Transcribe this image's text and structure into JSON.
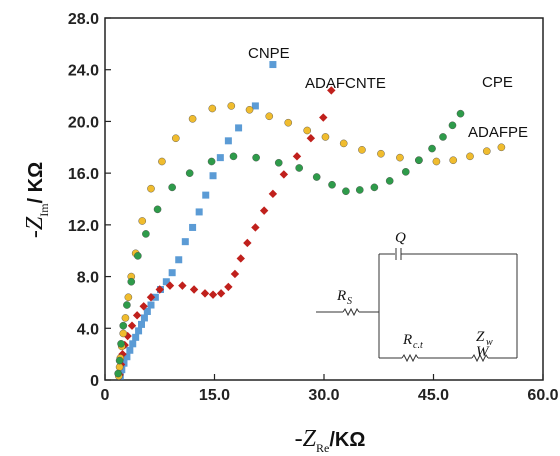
{
  "chart_data": {
    "type": "scatter",
    "title": "",
    "xlabel": {
      "prefix": "-Z",
      "sub": "Re",
      "unit": "/KΩ"
    },
    "ylabel": {
      "prefix": "-Z",
      "sub": "Im",
      "unit": "/ KΩ"
    },
    "xlim": [
      0,
      60
    ],
    "ylim": [
      0,
      28
    ],
    "xticks": [
      "0",
      "15.0",
      "30.0",
      "45.0",
      "60.0"
    ],
    "yticks": [
      "0",
      "4.0",
      "8.0",
      "12.0",
      "16.0",
      "20.0",
      "24.0",
      "28.0"
    ],
    "grid": false,
    "series": [
      {
        "name": "CNPE",
        "color": "#5b9bd5",
        "marker": "square",
        "points": [
          [
            2.1,
            0.3
          ],
          [
            2.3,
            0.8
          ],
          [
            2.6,
            1.3
          ],
          [
            3.0,
            1.8
          ],
          [
            3.4,
            2.3
          ],
          [
            3.8,
            2.8
          ],
          [
            4.2,
            3.3
          ],
          [
            4.6,
            3.8
          ],
          [
            5.0,
            4.3
          ],
          [
            5.4,
            4.8
          ],
          [
            5.8,
            5.3
          ],
          [
            6.3,
            5.8
          ],
          [
            6.9,
            6.4
          ],
          [
            7.6,
            7.0
          ],
          [
            8.4,
            7.6
          ],
          [
            9.2,
            8.3
          ],
          [
            10.1,
            9.3
          ],
          [
            11.0,
            10.7
          ],
          [
            12.0,
            11.8
          ],
          [
            12.9,
            13.0
          ],
          [
            13.8,
            14.3
          ],
          [
            14.8,
            15.8
          ],
          [
            15.8,
            17.2
          ],
          [
            16.9,
            18.5
          ],
          [
            18.3,
            19.5
          ],
          [
            20.6,
            21.2
          ],
          [
            23.0,
            24.4
          ]
        ]
      },
      {
        "name": "ADAFCNTE",
        "color": "#c0201c",
        "marker": "diamond",
        "points": [
          [
            2.0,
            0.4
          ],
          [
            2.2,
            1.2
          ],
          [
            2.4,
            2.0
          ],
          [
            2.7,
            2.7
          ],
          [
            3.1,
            3.4
          ],
          [
            3.7,
            4.2
          ],
          [
            4.4,
            5.0
          ],
          [
            5.3,
            5.7
          ],
          [
            6.3,
            6.4
          ],
          [
            7.5,
            7.0
          ],
          [
            8.9,
            7.3
          ],
          [
            10.6,
            7.3
          ],
          [
            12.2,
            7.0
          ],
          [
            13.7,
            6.7
          ],
          [
            14.8,
            6.6
          ],
          [
            15.9,
            6.7
          ],
          [
            16.9,
            7.2
          ],
          [
            17.8,
            8.2
          ],
          [
            18.6,
            9.4
          ],
          [
            19.5,
            10.6
          ],
          [
            20.6,
            11.8
          ],
          [
            21.8,
            13.1
          ],
          [
            23.0,
            14.4
          ],
          [
            24.5,
            15.9
          ],
          [
            26.3,
            17.3
          ],
          [
            28.2,
            18.7
          ],
          [
            29.9,
            20.3
          ],
          [
            31.0,
            22.4
          ]
        ]
      },
      {
        "name": "CPE",
        "color": "#f0bc2e",
        "marker": "circle",
        "points": [
          [
            1.9,
            0.3
          ],
          [
            2.0,
            1.0
          ],
          [
            2.1,
            1.7
          ],
          [
            2.3,
            2.6
          ],
          [
            2.5,
            3.6
          ],
          [
            2.8,
            4.8
          ],
          [
            3.2,
            6.4
          ],
          [
            3.6,
            8.0
          ],
          [
            4.2,
            9.8
          ],
          [
            5.1,
            12.3
          ],
          [
            6.3,
            14.8
          ],
          [
            7.8,
            16.9
          ],
          [
            9.7,
            18.7
          ],
          [
            12.0,
            20.2
          ],
          [
            14.7,
            21.0
          ],
          [
            17.3,
            21.2
          ],
          [
            19.8,
            20.9
          ],
          [
            22.5,
            20.4
          ],
          [
            25.1,
            19.9
          ],
          [
            27.7,
            19.3
          ],
          [
            30.2,
            18.8
          ],
          [
            32.7,
            18.3
          ],
          [
            35.2,
            17.8
          ],
          [
            37.8,
            17.5
          ],
          [
            40.4,
            17.2
          ],
          [
            43.0,
            17.0
          ],
          [
            45.4,
            16.9
          ],
          [
            47.7,
            17.0
          ],
          [
            50.0,
            17.3
          ],
          [
            52.3,
            17.7
          ],
          [
            54.3,
            18.0
          ]
        ]
      },
      {
        "name": "ADAFPE",
        "color": "#2e9b4a",
        "marker": "circle",
        "points": [
          [
            1.8,
            0.5
          ],
          [
            2.0,
            1.5
          ],
          [
            2.2,
            2.8
          ],
          [
            2.5,
            4.2
          ],
          [
            3.0,
            5.8
          ],
          [
            3.6,
            7.6
          ],
          [
            4.5,
            9.6
          ],
          [
            5.6,
            11.3
          ],
          [
            7.2,
            13.2
          ],
          [
            9.2,
            14.9
          ],
          [
            11.6,
            16.0
          ],
          [
            14.6,
            16.9
          ],
          [
            17.6,
            17.3
          ],
          [
            20.7,
            17.2
          ],
          [
            23.8,
            16.8
          ],
          [
            26.6,
            16.4
          ],
          [
            29.0,
            15.7
          ],
          [
            31.1,
            15.1
          ],
          [
            33.0,
            14.6
          ],
          [
            34.9,
            14.7
          ],
          [
            36.9,
            14.9
          ],
          [
            39.0,
            15.4
          ],
          [
            41.2,
            16.1
          ],
          [
            43.0,
            17.0
          ],
          [
            44.8,
            17.9
          ],
          [
            46.3,
            18.8
          ],
          [
            47.6,
            19.7
          ],
          [
            48.7,
            20.6
          ]
        ]
      }
    ]
  },
  "series_labels": {
    "cnpe": "CNPE",
    "adafcnte": "ADAFCNTE",
    "cpe": "CPE",
    "adafpe": "ADAFPE"
  },
  "circuit": {
    "q": "Q",
    "rs_main": "R",
    "rs_sub": "S",
    "rct_main": "R",
    "rct_sub": "c.t",
    "zw_main": "Z",
    "zw_sub": "w",
    "w": "W"
  }
}
